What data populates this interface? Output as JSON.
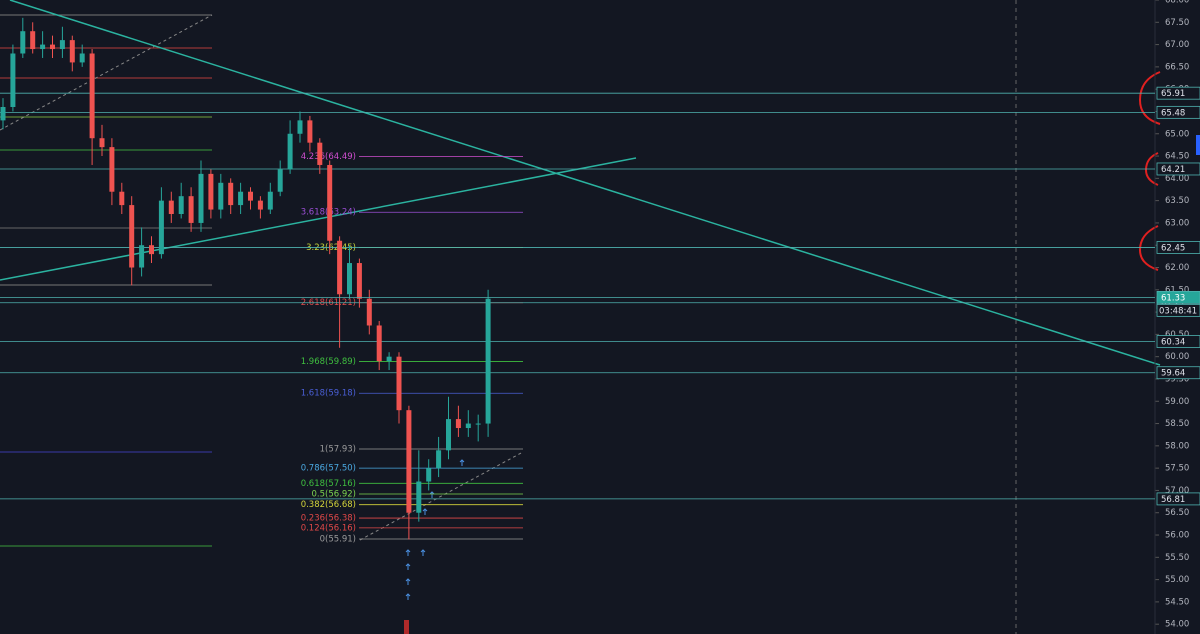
{
  "chart_data": {
    "type": "candlestick",
    "open": [
      65.3,
      65.6,
      66.8,
      67.3,
      66.9,
      67.0,
      66.9,
      67.1,
      66.6,
      66.8,
      64.9,
      64.7,
      63.7,
      63.4,
      62.0,
      62.5,
      62.3,
      63.5,
      63.2,
      63.6,
      63.0,
      64.1,
      63.3,
      63.9,
      63.4,
      63.7,
      63.5,
      63.3,
      63.7,
      64.2,
      65.0,
      65.3,
      64.8,
      64.3,
      62.6,
      61.4,
      62.1,
      61.3,
      60.7,
      59.9,
      60.0,
      58.8,
      56.5,
      57.2,
      57.5,
      57.9,
      58.6,
      58.4,
      58.5,
      58.5
    ],
    "high": [
      65.8,
      67.0,
      67.6,
      67.5,
      67.3,
      67.2,
      67.4,
      67.2,
      67.0,
      66.9,
      65.2,
      64.9,
      63.9,
      63.6,
      62.9,
      62.7,
      63.8,
      63.7,
      63.9,
      63.8,
      64.4,
      64.2,
      64.1,
      64.0,
      63.9,
      63.8,
      63.6,
      63.9,
      64.4,
      65.3,
      65.5,
      65.4,
      64.9,
      64.4,
      62.7,
      62.5,
      62.2,
      61.5,
      60.8,
      60.1,
      60.1,
      58.9,
      57.9,
      57.7,
      58.2,
      59.1,
      58.9,
      58.8,
      58.7,
      61.5
    ],
    "low": [
      65.1,
      65.5,
      66.7,
      66.8,
      66.7,
      66.7,
      66.7,
      66.4,
      66.5,
      64.3,
      64.5,
      63.4,
      63.2,
      61.6,
      61.8,
      62.1,
      62.2,
      63.0,
      63.1,
      62.8,
      62.8,
      63.1,
      63.1,
      63.2,
      63.2,
      63.3,
      63.1,
      63.2,
      63.6,
      64.1,
      64.8,
      64.6,
      64.1,
      62.3,
      60.2,
      61.3,
      61.1,
      60.5,
      59.7,
      59.7,
      58.5,
      55.9,
      56.3,
      57.0,
      57.3,
      57.7,
      58.2,
      58.2,
      58.1,
      58.2
    ],
    "close": [
      65.6,
      66.8,
      67.3,
      66.9,
      67.0,
      66.9,
      67.1,
      66.6,
      66.8,
      64.9,
      64.7,
      63.7,
      63.4,
      62.0,
      62.5,
      62.3,
      63.5,
      63.2,
      63.6,
      63.0,
      64.1,
      63.3,
      63.9,
      63.4,
      63.7,
      63.5,
      63.3,
      63.7,
      64.2,
      65.0,
      65.3,
      64.8,
      64.3,
      62.6,
      61.4,
      62.1,
      61.3,
      60.7,
      59.9,
      60.0,
      58.8,
      56.5,
      57.2,
      57.5,
      57.9,
      58.6,
      58.4,
      58.5,
      58.5,
      61.3
    ],
    "up_color": "#26a69a",
    "down_color": "#ef5350",
    "ylim": [
      53.78,
      68.0
    ],
    "yticks": [
      {
        "value": 54,
        "label": "54.00"
      },
      {
        "value": 54.5,
        "label": "54.50"
      },
      {
        "value": 55,
        "label": "55.00"
      },
      {
        "value": 55.5,
        "label": "55.50"
      },
      {
        "value": 56,
        "label": "56.00"
      },
      {
        "value": 56.5,
        "label": "56.50"
      },
      {
        "value": 57,
        "label": "57.00"
      },
      {
        "value": 57.5,
        "label": "57.50"
      },
      {
        "value": 58,
        "label": "58.00"
      },
      {
        "value": 58.5,
        "label": "58.50"
      },
      {
        "value": 59,
        "label": "59.00"
      },
      {
        "value": 59.5,
        "label": "59.50"
      },
      {
        "value": 60,
        "label": "60.00"
      },
      {
        "value": 60.5,
        "label": "60.50"
      },
      {
        "value": 61,
        "label": "61.00"
      },
      {
        "value": 61.5,
        "label": "61.50"
      },
      {
        "value": 62,
        "label": "62.00"
      },
      {
        "value": 62.5,
        "label": "62.50"
      },
      {
        "value": 63,
        "label": "63.00"
      },
      {
        "value": 63.5,
        "label": "63.50"
      },
      {
        "value": 64,
        "label": "64.00"
      },
      {
        "value": 64.5,
        "label": "64.50"
      },
      {
        "value": 65,
        "label": "65.00"
      },
      {
        "value": 65.5,
        "label": "65.50"
      },
      {
        "value": 66,
        "label": "66.00"
      },
      {
        "value": 66.5,
        "label": "66.50"
      },
      {
        "value": 67,
        "label": "67.00"
      },
      {
        "value": 67.5,
        "label": "67.50"
      },
      {
        "value": 68,
        "label": "68.00"
      }
    ],
    "levels": [
      65.91,
      65.48,
      64.21,
      62.45,
      61.21,
      60.34,
      59.64,
      56.81
    ],
    "level_color": "#4fb3b0",
    "last_price": 61.33,
    "countdown": "03:48:41",
    "fib_levels": [
      {
        "value": 64.49,
        "label": "4.236(64.49)",
        "color": "#d14fd1"
      },
      {
        "value": 63.24,
        "label": "3.618(63.24)",
        "color": "#9c4fd6"
      },
      {
        "value": 62.45,
        "label": "3.23(62.45)",
        "color": "#c6d43a"
      },
      {
        "value": 61.21,
        "label": "2.618(61.21)",
        "color": "#e04848"
      },
      {
        "value": 59.89,
        "label": "1.968(59.89)",
        "color": "#3fbf3f"
      },
      {
        "value": 59.18,
        "label": "1.618(59.18)",
        "color": "#4a5fd6"
      },
      {
        "value": 57.93,
        "label": "1(57.93)",
        "color": "#9a9a9a"
      },
      {
        "value": 57.5,
        "label": "0.786(57.50)",
        "color": "#4aa8e0"
      },
      {
        "value": 57.16,
        "label": "0.618(57.16)",
        "color": "#3fbf3f"
      },
      {
        "value": 56.92,
        "label": "0.5(56.92)",
        "color": "#7cd44f"
      },
      {
        "value": 56.68,
        "label": "0.382(56.68)",
        "color": "#d4d43a"
      },
      {
        "value": 56.38,
        "label": "0.236(56.38)",
        "color": "#e04848"
      },
      {
        "value": 56.16,
        "label": "0.124(56.16)",
        "color": "#e04848"
      },
      {
        "value": 55.91,
        "label": "0(55.91)",
        "color": "#9a9a9a"
      }
    ]
  }
}
